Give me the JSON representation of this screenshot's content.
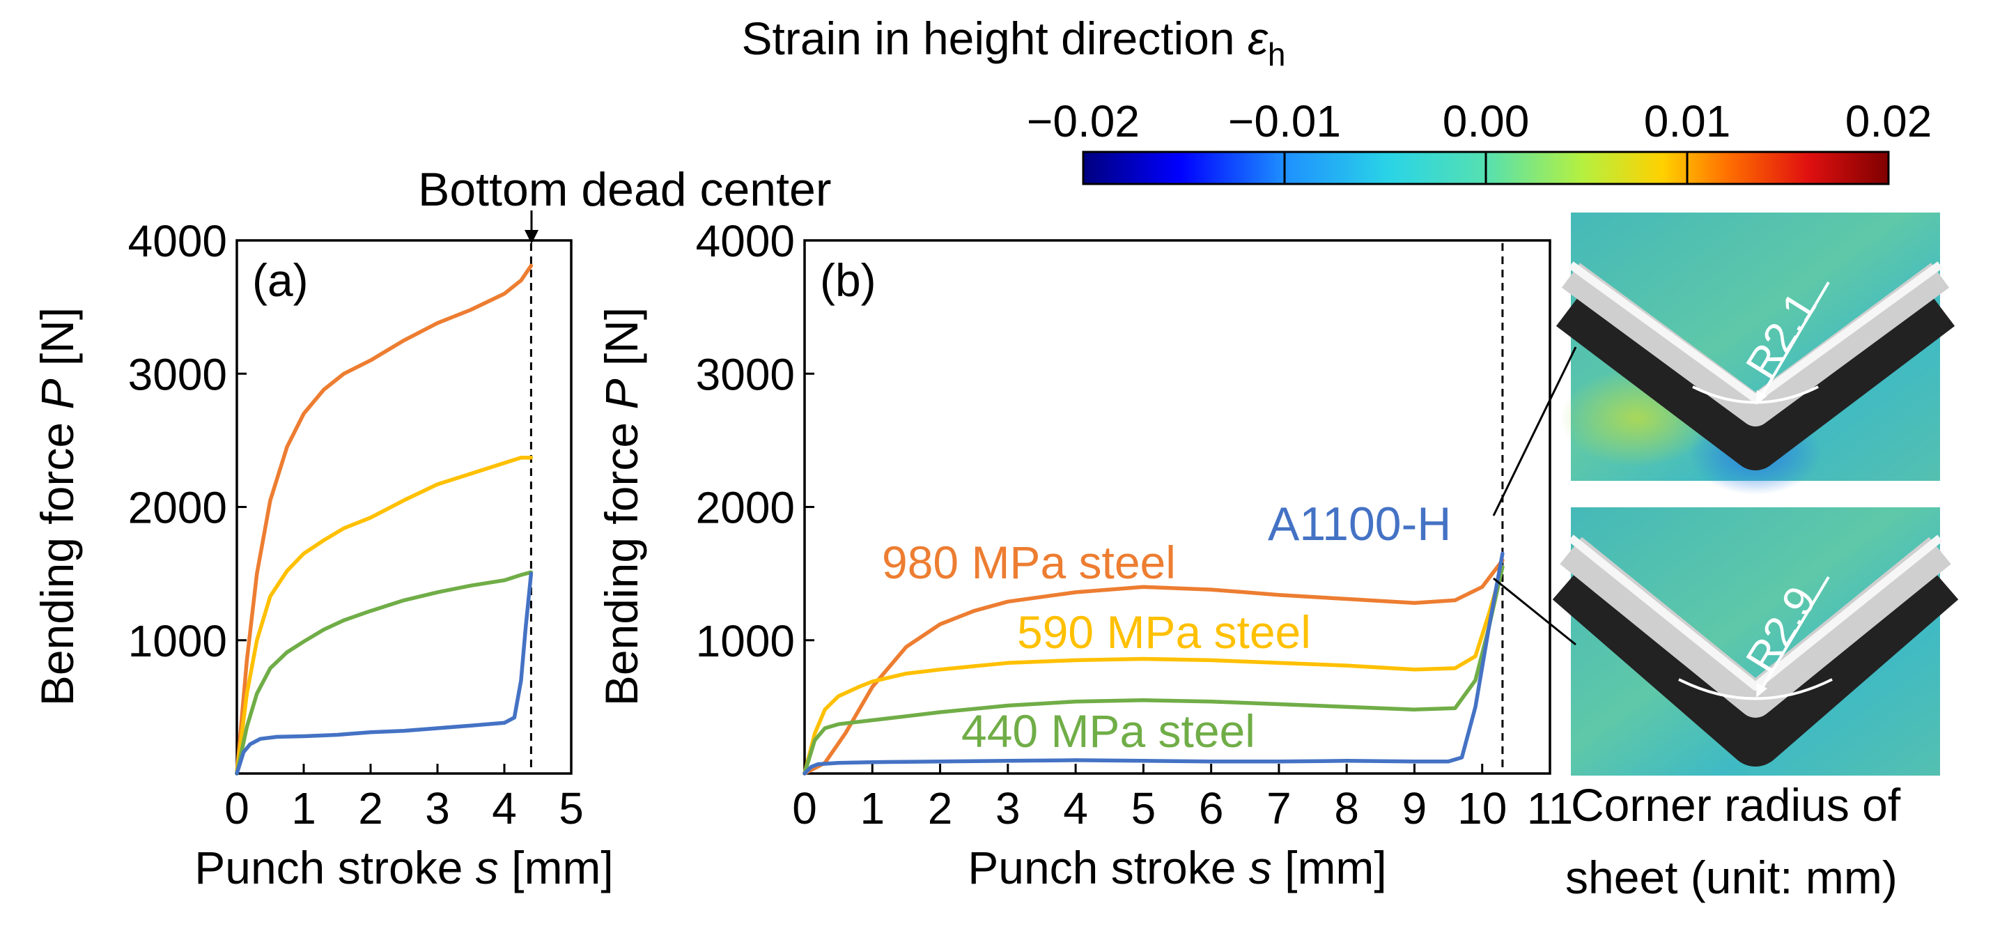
{
  "colors": {
    "orange": "#ED7D31",
    "yellow": "#FFC000",
    "green": "#70AD47",
    "blue": "#4472C4"
  },
  "colorbar": {
    "title": "Strain in height direction ",
    "symbol": "ε",
    "subscript": "h",
    "tick_labels": [
      "−0.02",
      "−0.01",
      "0.00",
      "0.01",
      "0.02"
    ],
    "range": [
      -0.02,
      0.02
    ]
  },
  "annotations": {
    "bottom_dead_center": "Bottom dead center"
  },
  "insets": {
    "top": {
      "label": "R2.1",
      "image": "strain-field-photo-bent-sheet"
    },
    "bottom": {
      "label": "R2.9",
      "image": "strain-field-photo-bent-sheet"
    },
    "caption_line1": "Corner radius of",
    "caption_line2": "sheet (unit: mm)"
  },
  "chart_data": [
    {
      "type": "line",
      "panel": "(a)",
      "title": "",
      "xlabel_prefix": "Punch stroke ",
      "xlabel_var": "s",
      "xlabel_suffix": " [mm]",
      "ylabel_prefix": "Bending force ",
      "ylabel_var": "P",
      "ylabel_suffix": " [N]",
      "xlim": [
        0,
        5
      ],
      "ylim": [
        0,
        4000
      ],
      "xticks": [
        0,
        1,
        2,
        3,
        4,
        5
      ],
      "yticks": [
        1000,
        2000,
        3000,
        4000
      ],
      "bottom_dead_center": 4.4,
      "series": [
        {
          "name": "980 MPa steel",
          "color": "#ED7D31",
          "x": [
            0,
            0.15,
            0.3,
            0.5,
            0.75,
            1.0,
            1.3,
            1.6,
            2.0,
            2.5,
            3.0,
            3.5,
            4.0,
            4.25,
            4.4
          ],
          "y": [
            0,
            850,
            1500,
            2050,
            2450,
            2700,
            2880,
            3000,
            3100,
            3250,
            3380,
            3480,
            3600,
            3700,
            3810
          ]
        },
        {
          "name": "590 MPa steel",
          "color": "#FFC000",
          "x": [
            0,
            0.15,
            0.3,
            0.5,
            0.75,
            1.0,
            1.3,
            1.6,
            2.0,
            2.5,
            3.0,
            3.5,
            4.0,
            4.25,
            4.4
          ],
          "y": [
            0,
            600,
            1000,
            1330,
            1520,
            1650,
            1750,
            1840,
            1920,
            2050,
            2170,
            2250,
            2330,
            2370,
            2370
          ]
        },
        {
          "name": "440 MPa steel",
          "color": "#70AD47",
          "x": [
            0,
            0.15,
            0.3,
            0.5,
            0.75,
            1.0,
            1.3,
            1.6,
            2.0,
            2.5,
            3.0,
            3.5,
            4.0,
            4.25,
            4.4
          ],
          "y": [
            0,
            350,
            600,
            790,
            910,
            990,
            1080,
            1150,
            1220,
            1300,
            1360,
            1410,
            1450,
            1490,
            1510
          ]
        },
        {
          "name": "A1100-H",
          "color": "#4472C4",
          "x": [
            0,
            0.1,
            0.2,
            0.35,
            0.6,
            1.0,
            1.5,
            2.0,
            2.5,
            3.0,
            3.5,
            4.0,
            4.15,
            4.25,
            4.32,
            4.4
          ],
          "y": [
            0,
            160,
            220,
            260,
            275,
            280,
            290,
            310,
            320,
            340,
            360,
            380,
            420,
            700,
            1100,
            1500
          ]
        }
      ]
    },
    {
      "type": "line",
      "panel": "(b)",
      "title": "",
      "xlabel_prefix": "Punch stroke ",
      "xlabel_var": "s",
      "xlabel_suffix": " [mm]",
      "ylabel_prefix": "Bending force ",
      "ylabel_var": "P",
      "ylabel_suffix": " [N]",
      "xlim": [
        0,
        11
      ],
      "ylim": [
        0,
        4000
      ],
      "xticks": [
        0,
        1,
        2,
        3,
        4,
        5,
        6,
        7,
        8,
        9,
        10,
        11
      ],
      "yticks": [
        1000,
        2000,
        3000,
        4000
      ],
      "bottom_dead_center": 10.3,
      "series": [
        {
          "name": "980 MPa steel",
          "color": "#ED7D31",
          "x": [
            0,
            0.3,
            0.6,
            1.0,
            1.5,
            2.0,
            2.5,
            3.0,
            4.0,
            5.0,
            6.0,
            7.0,
            8.0,
            9.0,
            9.6,
            10.0,
            10.3
          ],
          "y": [
            0,
            80,
            300,
            650,
            950,
            1120,
            1220,
            1290,
            1360,
            1400,
            1380,
            1340,
            1310,
            1280,
            1300,
            1400,
            1600
          ]
        },
        {
          "name": "590 MPa steel",
          "color": "#FFC000",
          "x": [
            0,
            0.15,
            0.3,
            0.5,
            0.8,
            1.0,
            1.5,
            2.0,
            3.0,
            4.0,
            5.0,
            6.0,
            7.0,
            8.0,
            9.0,
            9.6,
            9.9,
            10.1,
            10.3
          ],
          "y": [
            0,
            300,
            480,
            580,
            650,
            690,
            750,
            780,
            830,
            850,
            860,
            850,
            830,
            810,
            780,
            790,
            880,
            1200,
            1550
          ]
        },
        {
          "name": "440 MPa steel",
          "color": "#70AD47",
          "x": [
            0,
            0.15,
            0.3,
            0.5,
            1.0,
            1.5,
            2.0,
            3.0,
            4.0,
            5.0,
            6.0,
            7.0,
            8.0,
            9.0,
            9.6,
            9.9,
            10.1,
            10.3
          ],
          "y": [
            0,
            250,
            340,
            370,
            400,
            430,
            460,
            510,
            540,
            550,
            540,
            520,
            500,
            480,
            490,
            700,
            1100,
            1550
          ]
        },
        {
          "name": "A1100-H",
          "color": "#4472C4",
          "x": [
            0,
            0.1,
            0.2,
            0.5,
            1.0,
            2.0,
            3.0,
            4.0,
            5.0,
            6.0,
            7.0,
            8.0,
            9.0,
            9.5,
            9.7,
            9.9,
            10.1,
            10.3
          ],
          "y": [
            0,
            50,
            70,
            80,
            85,
            90,
            95,
            100,
            95,
            90,
            90,
            95,
            90,
            90,
            120,
            500,
            1100,
            1650
          ]
        }
      ]
    }
  ]
}
